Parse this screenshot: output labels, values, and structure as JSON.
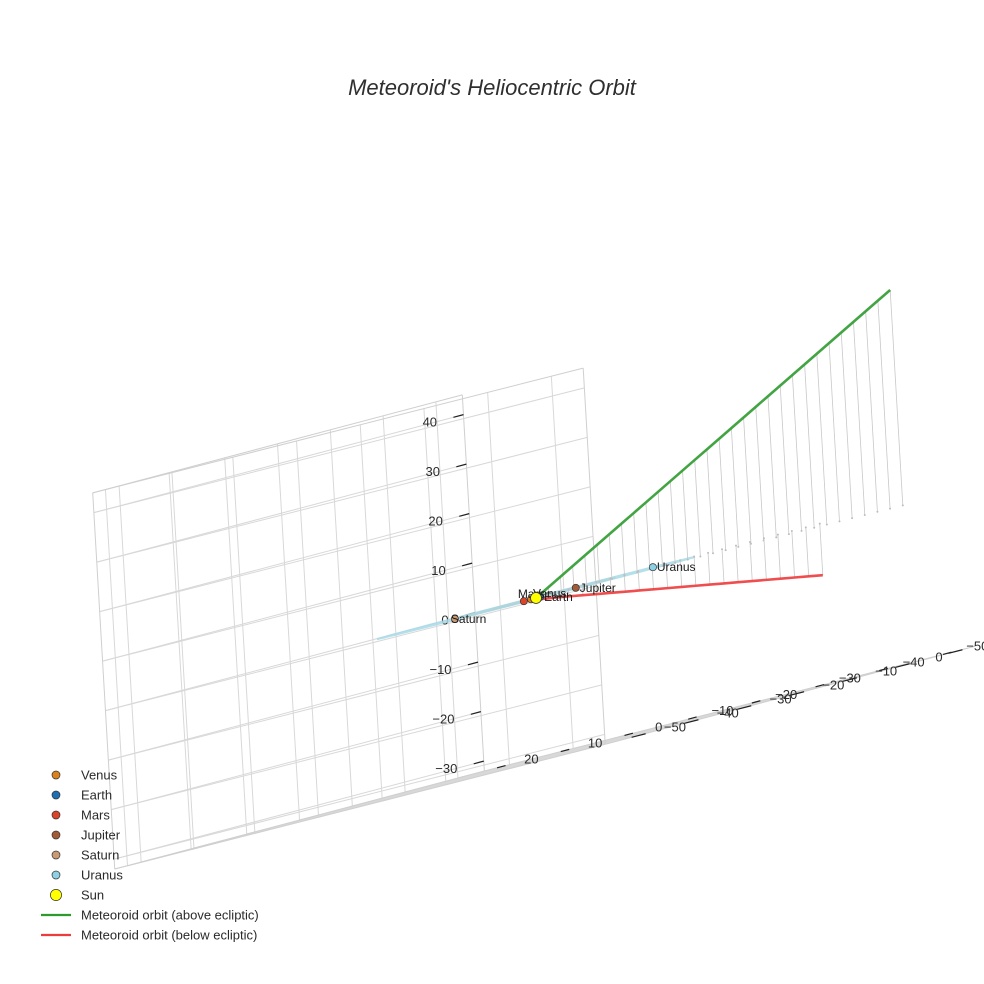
{
  "chart_data": {
    "type": "scatter3d",
    "title": "Meteoroid's Heliocentric Orbit",
    "axes": {
      "x": {
        "ticks": [
          -50,
          -40,
          -30,
          -20,
          -10,
          0,
          10,
          20
        ],
        "range": [
          -55,
          22
        ]
      },
      "y": {
        "ticks": [
          -50,
          -40,
          -30,
          -20,
          -10,
          0,
          10
        ],
        "range": [
          -55,
          15
        ]
      },
      "z": {
        "ticks": [
          -30,
          -20,
          -10,
          0,
          10,
          20,
          30,
          40
        ],
        "range": [
          -32,
          44
        ]
      }
    },
    "grid": true,
    "legend_position": "bottom-left",
    "colors": {
      "Venus": "#d9821e",
      "Earth": "#1f6fb5",
      "Mars": "#d9442a",
      "Jupiter": "#a35a36",
      "Saturn": "#c99a74",
      "Uranus": "#8ed0e4",
      "Sun": "#ffff00",
      "above": "#2e9a2e",
      "below": "#ee3b3b",
      "orbit_jupiter": "#a87355",
      "orbit_saturn": "#d9b598",
      "orbit_uranus": "#a8dae8"
    },
    "planets": [
      {
        "name": "Venus",
        "label": "Venus",
        "x": 0.2,
        "y": -0.7,
        "z": 0,
        "orbit_radius": 0.72
      },
      {
        "name": "Earth",
        "label": "Earth",
        "x": -0.9,
        "y": -0.3,
        "z": 0,
        "orbit_radius": 1.0
      },
      {
        "name": "Mars",
        "label": "Mars",
        "x": 1.0,
        "y": -1.1,
        "z": 0,
        "orbit_radius": 1.52
      },
      {
        "name": "Jupiter",
        "label": "Jupiter",
        "x": -5.0,
        "y": 1.5,
        "z": 0,
        "orbit_radius": 5.2
      },
      {
        "name": "Saturn",
        "label": "Saturn",
        "x": 9.0,
        "y": -4.5,
        "z": 0,
        "orbit_radius": 9.6
      },
      {
        "name": "Uranus",
        "label": "Uranus",
        "x": -2.6,
        "y": 19.0,
        "z": 0,
        "orbit_radius": 19.2
      }
    ],
    "sun": {
      "name": "Sun",
      "x": 0,
      "y": 0,
      "z": 0
    },
    "meteoroid": {
      "above": {
        "name": "Meteoroid orbit (above ecliptic)",
        "x": [
          0,
          -2.3,
          -4.6,
          -6.9,
          -9.2,
          -11.5,
          -13.8,
          -16.1,
          -18.4,
          -20.7,
          -23.0,
          -25.3,
          -27.6,
          -29.9,
          -32.2,
          -34.5,
          -36.8,
          -39.1,
          -41.4,
          -43.7,
          -46.0,
          -48.3,
          -50.6,
          -52.9,
          -55.2,
          -57.5,
          -59.8,
          -62.1,
          -64.4,
          -66.7
        ],
        "y": [
          0,
          -0.38,
          -0.76,
          -1.14,
          -1.52,
          -1.9,
          -2.28,
          -2.66,
          -3.04,
          -3.42,
          -3.8,
          -4.18,
          -4.56,
          -4.94,
          -5.32,
          -5.7,
          -6.08,
          -6.46,
          -6.84,
          -7.22,
          -7.6,
          -7.98,
          -8.36,
          -8.74,
          -9.12,
          -9.5,
          -9.88,
          -10.26,
          -10.64,
          -11.0
        ],
        "z": [
          0,
          1.5,
          3.0,
          4.5,
          6.0,
          7.5,
          9.0,
          10.5,
          12.0,
          13.5,
          15.0,
          16.5,
          18.0,
          19.5,
          21.0,
          22.5,
          24.0,
          25.5,
          27.0,
          28.5,
          30.0,
          31.5,
          33.0,
          34.5,
          36.0,
          37.5,
          39.0,
          40.5,
          42.0,
          43.5
        ]
      },
      "below": {
        "name": "Meteoroid orbit (below ecliptic)",
        "x": [
          0,
          0.5,
          0.8,
          0.8,
          0.6,
          0.1,
          -0.7,
          -1.4,
          -2.1,
          -2.8,
          -3.5,
          -4.2,
          -4.9,
          -5.6,
          -6.3,
          -7.0,
          -7.7,
          -8.4,
          -9.1,
          -9.8,
          -10.5,
          -11.2,
          -11.9,
          -12.6,
          -13.3
        ],
        "y": [
          0,
          0.5,
          1.2,
          2.0,
          2.8,
          3.5,
          5.3,
          7.1,
          8.9,
          10.7,
          12.5,
          14.3,
          16.1,
          17.9,
          19.7,
          21.5,
          23.3,
          25.1,
          26.9,
          28.7,
          30.5,
          32.3,
          34.1,
          35.9,
          37.7
        ],
        "z": [
          0,
          -0.1,
          -0.3,
          -0.5,
          -0.7,
          -0.9,
          -1.4,
          -1.9,
          -2.4,
          -2.9,
          -3.4,
          -3.9,
          -4.4,
          -4.9,
          -5.4,
          -5.9,
          -6.4,
          -6.9,
          -7.4,
          -7.9,
          -8.4,
          -8.9,
          -9.4,
          -9.9,
          -10.4
        ]
      }
    },
    "legend": [
      {
        "label": "Venus",
        "kind": "marker",
        "color": "#d9821e"
      },
      {
        "label": "Earth",
        "kind": "marker",
        "color": "#1f6fb5"
      },
      {
        "label": "Mars",
        "kind": "marker",
        "color": "#d9442a"
      },
      {
        "label": "Jupiter",
        "kind": "marker",
        "color": "#a35a36"
      },
      {
        "label": "Saturn",
        "kind": "marker",
        "color": "#c99a74"
      },
      {
        "label": "Uranus",
        "kind": "marker",
        "color": "#8ed0e4"
      },
      {
        "label": "Sun",
        "kind": "sun",
        "color": "#ffff00"
      },
      {
        "label": "Meteoroid orbit (above ecliptic)",
        "kind": "line",
        "color": "#2e9a2e"
      },
      {
        "label": "Meteoroid orbit (below ecliptic)",
        "kind": "line",
        "color": "#ee3b3b"
      }
    ]
  }
}
